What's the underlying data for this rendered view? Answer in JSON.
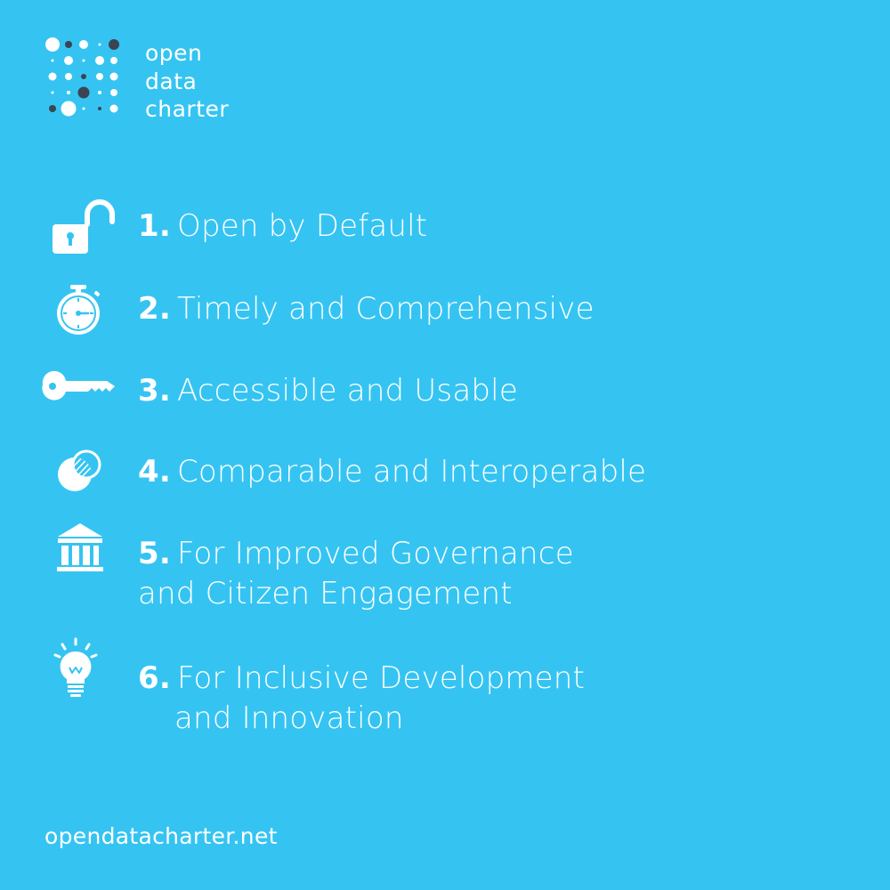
{
  "brand": {
    "logo_lines": [
      "open",
      "data",
      "charter"
    ],
    "background_color": "#35c4f2",
    "dot_dark_color": "#3b4452",
    "text_color": "#ffffff"
  },
  "principles": [
    {
      "number": "1.",
      "title": "Open by Default",
      "icon": "unlocked-padlock-icon"
    },
    {
      "number": "2.",
      "title": "Timely and Comprehensive",
      "icon": "stopwatch-icon"
    },
    {
      "number": "3.",
      "title": "Accessible and Usable",
      "icon": "key-icon"
    },
    {
      "number": "4.",
      "title": "Comparable and Interoperable",
      "icon": "overlapping-circles-icon"
    },
    {
      "number": "5.",
      "title_line1": "For Improved Governance",
      "title_line2": "and Citizen Engagement",
      "icon": "government-building-icon"
    },
    {
      "number": "6.",
      "title_line1": "For Inclusive Development",
      "title_line2": "and Innovation",
      "icon": "lightbulb-icon"
    }
  ],
  "footer": {
    "url": "opendatacharter.net"
  }
}
